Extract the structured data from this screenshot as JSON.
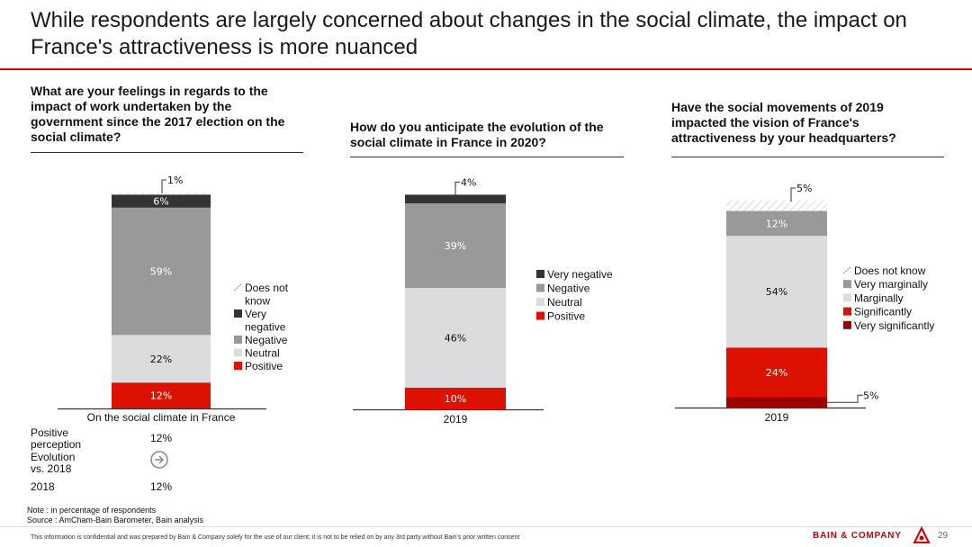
{
  "title": "While respondents are largely concerned about changes in the social climate, the impact on France's attractiveness is more nuanced",
  "colors": {
    "accent": "#cc0000",
    "dark_gray": "#333333",
    "mid_gray": "#999999",
    "light_gray": "#dcdcdf",
    "dark_red": "#9e0000"
  },
  "chart_data": [
    {
      "type": "bar",
      "stacked": true,
      "title": "What are your feelings in regards to the impact of work undertaken by the government since the 2017 election on the social climate?",
      "categories": [
        "On the social climate in France"
      ],
      "ylim": [
        0,
        100
      ],
      "series": [
        {
          "name": "Positive",
          "values": [
            12
          ],
          "label": "12%",
          "color": "#dd1100"
        },
        {
          "name": "Neutral",
          "values": [
            22
          ],
          "label": "22%",
          "color": "#dcdcdf"
        },
        {
          "name": "Negative",
          "values": [
            59
          ],
          "label": "59%",
          "color": "#999999"
        },
        {
          "name": "Very negative",
          "values": [
            6
          ],
          "label": "6%",
          "color": "#333333"
        },
        {
          "name": "Does not know",
          "values": [
            1
          ],
          "label": "1%",
          "color": "#ffffff"
        }
      ],
      "legend": [
        "Does not know",
        "Very negative",
        "Negative",
        "Neutral",
        "Positive"
      ],
      "legend_lines": [
        [
          "Does not",
          "know"
        ],
        [
          "Very",
          "negative"
        ],
        [
          "Negative"
        ],
        [
          "Neutral"
        ],
        [
          "Positive"
        ]
      ],
      "table": {
        "rows": [
          {
            "label_lines": [
              "Positive",
              "perception"
            ],
            "value": "12%"
          },
          {
            "label_lines": [
              "Evolution",
              "vs. 2018"
            ],
            "value": "",
            "icon": "arrow-right-circle-icon"
          },
          {
            "label_lines": [
              "2018"
            ],
            "value": "12%"
          }
        ]
      }
    },
    {
      "type": "bar",
      "stacked": true,
      "title": "How do you anticipate the evolution of the social climate in France in 2020?",
      "categories": [
        "2019"
      ],
      "ylim": [
        0,
        100
      ],
      "series": [
        {
          "name": "Positive",
          "values": [
            10
          ],
          "label": "10%",
          "color": "#dd1100"
        },
        {
          "name": "Neutral",
          "values": [
            46
          ],
          "label": "46%",
          "color": "#dcdcdf"
        },
        {
          "name": "Negative",
          "values": [
            39
          ],
          "label": "39%",
          "color": "#999999"
        },
        {
          "name": "Very negative",
          "values": [
            4
          ],
          "label": "4%",
          "color": "#333333"
        }
      ],
      "legend": [
        "Very negative",
        "Negative",
        "Neutral",
        "Positive"
      ]
    },
    {
      "type": "bar",
      "stacked": true,
      "title": "Have the social movements of 2019 impacted the vision of France's attractiveness by your headquarters?",
      "categories": [
        "2019"
      ],
      "ylim": [
        0,
        100
      ],
      "series": [
        {
          "name": "Very significantly",
          "values": [
            5
          ],
          "label": "5%",
          "color": "#9e0000"
        },
        {
          "name": "Significantly",
          "values": [
            24
          ],
          "label": "24%",
          "color": "#dd1100"
        },
        {
          "name": "Marginally",
          "values": [
            54
          ],
          "label": "54%",
          "color": "#dcdcdf"
        },
        {
          "name": "Very marginally",
          "values": [
            12
          ],
          "label": "12%",
          "color": "#999999"
        },
        {
          "name": "Does not know",
          "values": [
            5
          ],
          "label": "5%",
          "color": "#ffffff"
        }
      ],
      "legend": [
        "Does not know",
        "Very marginally",
        "Marginally",
        "Significantly",
        "Very significantly"
      ]
    }
  ],
  "note": "Note : in percentage of respondents",
  "source": "Source : AmCham-Bain Barometer, Bain analysis",
  "disclaimer": "This information is confidential and was prepared by Bain & Company solely for the use of our client; it is not to be relied on by any 3rd party without Bain's prior written consent",
  "brand": "BAIN & COMPANY",
  "page_number": "29"
}
